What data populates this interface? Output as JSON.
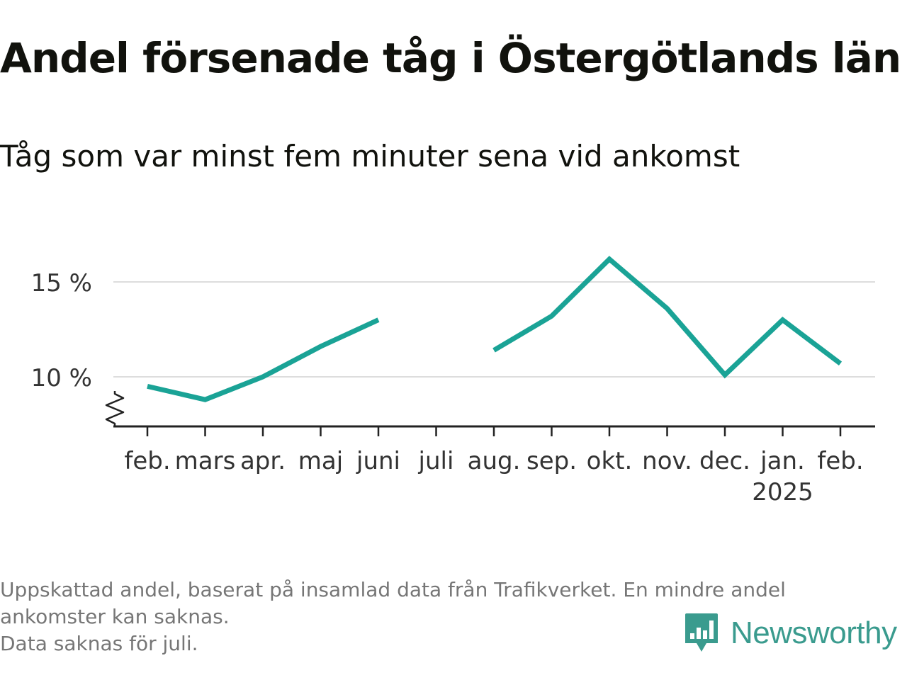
{
  "title": "Andel försenade tåg i Östergötlands län",
  "subtitle": "Tåg som var minst fem minuter sena vid ankomst",
  "footnote": {
    "line1": "Uppskattad andel, baserat på insamlad data från Trafikverket. En mindre andel",
    "line2": "ankomster kan saknas.",
    "line3": "Data saknas för juli."
  },
  "brand": {
    "name": "Newsworthy",
    "icon": "newsworthy-logo-icon",
    "color": "#3a9b8e"
  },
  "chart_data": {
    "type": "line",
    "categories": [
      "feb.",
      "mars",
      "apr.",
      "maj",
      "juni",
      "juli",
      "aug.",
      "sep.",
      "okt.",
      "nov.",
      "dec.",
      "jan.",
      "feb."
    ],
    "year_labels": [
      "",
      "",
      "",
      "",
      "",
      "",
      "",
      "",
      "",
      "",
      "",
      "2025",
      ""
    ],
    "series": [
      {
        "values": [
          9.5,
          8.8,
          10.0,
          11.6,
          13.0,
          null,
          11.4,
          13.2,
          16.2,
          13.6,
          10.1,
          13.0,
          10.7
        ],
        "color": "#1aa396"
      }
    ],
    "ylim": [
      8,
      16.5
    ],
    "yticks": [
      10,
      15
    ],
    "ytick_labels": [
      "10 %",
      "15 %"
    ],
    "grid": true,
    "axis_break": true,
    "legend": false
  }
}
